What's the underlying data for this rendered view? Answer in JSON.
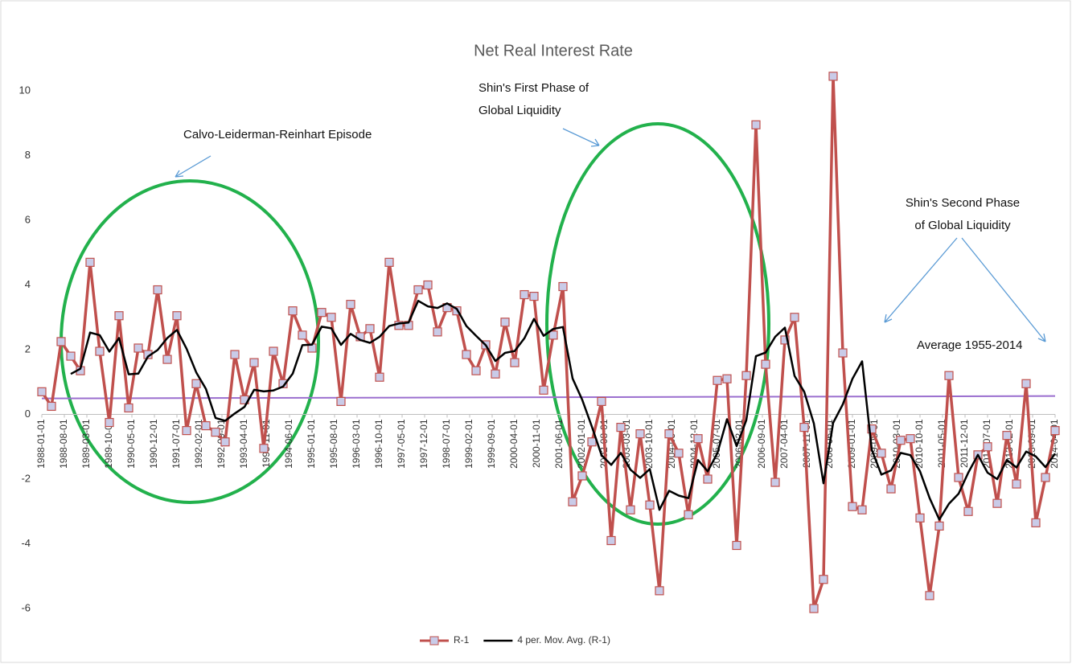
{
  "chart_data": {
    "type": "line",
    "title": "Net Real Interest Rate",
    "x": [
      "1988-01-01",
      "1988-04-01",
      "1988-07-01",
      "1988-10-01",
      "1989-01-01",
      "1989-04-01",
      "1989-07-01",
      "1989-10-01",
      "1990-01-01",
      "1990-04-01",
      "1990-07-01",
      "1990-10-01",
      "1991-01-01",
      "1991-04-01",
      "1991-07-01",
      "1991-10-01",
      "1992-01-01",
      "1992-04-01",
      "1992-07-01",
      "1992-10-01",
      "1993-01-01",
      "1993-04-01",
      "1993-07-01",
      "1993-10-01",
      "1994-01-01",
      "1994-04-01",
      "1994-07-01",
      "1994-10-01",
      "1995-01-01",
      "1995-04-01",
      "1995-07-01",
      "1995-10-01",
      "1996-01-01",
      "1996-04-01",
      "1996-07-01",
      "1996-10-01",
      "1997-01-01",
      "1997-04-01",
      "1997-07-01",
      "1997-10-01",
      "1998-01-01",
      "1998-04-01",
      "1998-07-01",
      "1998-10-01",
      "1999-01-01",
      "1999-04-01",
      "1999-07-01",
      "1999-10-01",
      "2000-01-01",
      "2000-04-01",
      "2000-07-01",
      "2000-10-01",
      "2001-01-01",
      "2001-04-01",
      "2001-07-01",
      "2001-10-01",
      "2002-01-01",
      "2002-04-01",
      "2002-07-01",
      "2002-10-01",
      "2003-01-01",
      "2003-04-01",
      "2003-07-01",
      "2003-10-01",
      "2004-01-01",
      "2004-04-01",
      "2004-07-01",
      "2004-10-01",
      "2005-01-01",
      "2005-04-01",
      "2005-07-01",
      "2005-10-01",
      "2006-01-01",
      "2006-04-01",
      "2006-07-01",
      "2006-10-01",
      "2007-01-01",
      "2007-04-01",
      "2007-07-01",
      "2007-10-01",
      "2008-01-01",
      "2008-04-01",
      "2008-07-01",
      "2008-10-01",
      "2009-01-01",
      "2009-04-01",
      "2009-07-01",
      "2009-10-01",
      "2010-01-01",
      "2010-04-01",
      "2010-07-01",
      "2010-10-01",
      "2011-01-01",
      "2011-04-01",
      "2011-07-01",
      "2011-10-01",
      "2012-01-01",
      "2012-04-01",
      "2012-07-01",
      "2012-10-01",
      "2013-01-01",
      "2013-04-01",
      "2013-07-01",
      "2013-10-01",
      "2014-01-01",
      "2014-04-01"
    ],
    "xlim": [
      "1988-01-01",
      "2014-04-01"
    ],
    "xticks": [
      "1988-01-01",
      "1988-08-01",
      "1989-03-01",
      "1989-10-01",
      "1990-05-01",
      "1990-12-01",
      "1991-07-01",
      "1992-02-01",
      "1992-09-01",
      "1993-04-01",
      "1993-11-01",
      "1994-06-01",
      "1995-01-01",
      "1995-08-01",
      "1996-03-01",
      "1996-10-01",
      "1997-05-01",
      "1997-12-01",
      "1998-07-01",
      "1999-02-01",
      "1999-09-01",
      "2000-04-01",
      "2000-11-01",
      "2001-06-01",
      "2002-01-01",
      "2002-08-01",
      "2003-03-01",
      "2003-10-01",
      "2004-05-01",
      "2004-12-01",
      "2005-07-01",
      "2006-02-01",
      "2006-09-01",
      "2007-04-01",
      "2007-11-01",
      "2008-06-01",
      "2009-01-01",
      "2009-08-01",
      "2010-03-01",
      "2010-10-01",
      "2011-05-01",
      "2011-12-01",
      "2012-07-01",
      "2013-02-01",
      "2013-09-01",
      "2014-04-01"
    ],
    "ylim": [
      -6,
      10
    ],
    "yticks": [
      -6,
      -4,
      -2,
      0,
      2,
      4,
      6,
      8,
      10
    ],
    "grid": false,
    "legend": "bottom",
    "series": [
      {
        "name": "R-1",
        "color": "#c0504d",
        "marker": "square",
        "values": [
          0.7,
          0.25,
          2.25,
          1.8,
          1.35,
          4.7,
          1.95,
          -0.25,
          3.05,
          0.2,
          2.05,
          1.85,
          3.85,
          1.7,
          3.05,
          -0.5,
          0.95,
          -0.35,
          -0.55,
          -0.85,
          1.85,
          0.45,
          1.6,
          -1.05,
          1.95,
          0.95,
          3.2,
          2.45,
          2.05,
          3.15,
          3.0,
          0.4,
          3.4,
          2.4,
          2.65,
          1.15,
          4.7,
          2.75,
          2.75,
          3.85,
          4.0,
          2.55,
          3.3,
          3.2,
          1.85,
          1.35,
          2.15,
          1.25,
          2.85,
          1.6,
          3.7,
          3.65,
          0.75,
          2.45,
          3.95,
          -2.7,
          -1.9,
          -0.85,
          0.4,
          -3.9,
          -0.4,
          -2.95,
          -0.6,
          -2.8,
          -5.45,
          -0.6,
          -1.2,
          -3.1,
          -0.75,
          -2.0,
          1.05,
          1.1,
          -4.05,
          1.2,
          8.95,
          1.55,
          -2.1,
          2.3,
          3.0,
          -0.4,
          -6.0,
          -5.1,
          10.45,
          1.9,
          -2.85,
          -2.95,
          -0.45,
          -1.2,
          -2.3,
          -0.8,
          -0.75,
          -3.2,
          -5.6,
          -3.45,
          1.2,
          -1.95,
          -3.0,
          -1.25,
          -1.0,
          -2.75,
          -0.65,
          -2.15,
          0.95,
          -3.35,
          -1.95,
          -0.5
        ]
      },
      {
        "name": "4 per. Mov. Avg. (R-1)",
        "color": "#000000",
        "values": [
          null,
          null,
          null,
          1.25,
          1.41,
          2.53,
          2.45,
          1.94,
          2.36,
          1.24,
          1.26,
          1.79,
          1.99,
          2.36,
          2.61,
          2.03,
          1.3,
          0.79,
          -0.11,
          -0.2,
          0.03,
          0.23,
          0.76,
          0.71,
          0.74,
          0.86,
          1.26,
          2.14,
          2.16,
          2.71,
          2.66,
          2.15,
          2.49,
          2.3,
          2.21,
          2.4,
          2.73,
          2.81,
          2.84,
          3.51,
          3.34,
          3.29,
          3.43,
          3.26,
          2.73,
          2.43,
          2.14,
          1.65,
          1.9,
          1.96,
          2.35,
          2.95,
          2.43,
          2.64,
          2.7,
          1.11,
          0.45,
          -0.38,
          -1.26,
          -1.56,
          -1.19,
          -1.71,
          -1.96,
          -1.69,
          -2.95,
          -2.36,
          -2.51,
          -2.59,
          -1.41,
          -1.76,
          -1.2,
          -0.15,
          -0.98,
          -0.18,
          1.8,
          1.91,
          2.4,
          2.68,
          1.19,
          0.7,
          -0.28,
          -2.13,
          -0.26,
          0.31,
          1.1,
          1.64,
          -1.09,
          -1.86,
          -1.73,
          -1.19,
          -1.26,
          -1.76,
          -2.59,
          -3.25,
          -2.76,
          -2.45,
          -1.8,
          -1.25,
          -1.8,
          -2.0,
          -1.41,
          -1.64,
          -1.15,
          -1.3,
          -1.63,
          -1.21
        ]
      }
    ],
    "hlines": [
      {
        "label": "Average 1955-2014",
        "value": 0.53,
        "color": "#9b6fcf"
      }
    ],
    "annotations": [
      {
        "lines": [
          "Calvo-Leiderman-Reinhart Episode"
        ]
      },
      {
        "lines": [
          "Shin's First Phase of",
          "Global Liquidity"
        ]
      },
      {
        "lines": [
          "Shin's Second Phase",
          "of Global Liquidity"
        ]
      }
    ]
  }
}
